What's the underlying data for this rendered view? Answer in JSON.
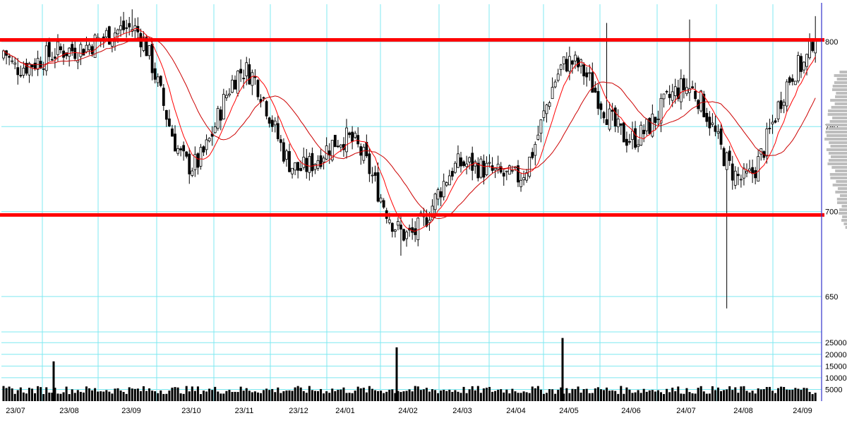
{
  "chart_data": {
    "type": "candlestick",
    "x_tick_labels": [
      "23/07",
      "23/08",
      "23/09",
      "23/10",
      "23/11",
      "23/12",
      "24/01",
      "24/02",
      "24/03",
      "24/04",
      "24/05",
      "24/06",
      "24/07",
      "24/08",
      "24/09"
    ],
    "price_axis": {
      "ticks": [
        650,
        700,
        750,
        800
      ],
      "tick_labels": [
        "650",
        "700",
        "750",
        "800"
      ],
      "range": [
        630,
        822
      ]
    },
    "volume_axis": {
      "ticks": [
        5000,
        10000,
        15000,
        20000,
        25000
      ],
      "tick_labels": [
        "5000",
        "10000",
        "15000",
        "20000",
        "25000"
      ],
      "range": [
        0,
        29000
      ]
    },
    "horizontal_lines": [
      {
        "value": 801,
        "color": "#ff0000"
      },
      {
        "value": 698,
        "color": "#ff0000"
      }
    ],
    "series": [
      {
        "kind": "ohlc",
        "color": "#000000",
        "sampled_closes": [
          {
            "x": "23/07",
            "y": 785
          },
          {
            "x": "23/08",
            "y": 795
          },
          {
            "x": "23/09",
            "y": 808
          },
          {
            "x": "23/10",
            "y": 727
          },
          {
            "x": "23/11",
            "y": 783
          },
          {
            "x": "23/12",
            "y": 725
          },
          {
            "x": "24/01",
            "y": 743
          },
          {
            "x": "24/02",
            "y": 686
          },
          {
            "x": "24/03",
            "y": 728
          },
          {
            "x": "24/04",
            "y": 720
          },
          {
            "x": "24/05",
            "y": 788
          },
          {
            "x": "24/06",
            "y": 743
          },
          {
            "x": "24/07",
            "y": 773
          },
          {
            "x": "24/08",
            "y": 719
          },
          {
            "x": "24/09",
            "y": 786
          }
        ]
      },
      {
        "kind": "moving_average",
        "color": "#ff0000"
      },
      {
        "kind": "moving_average",
        "color": "#cc0000"
      }
    ],
    "volume_peaks": [
      {
        "x": "23/08",
        "value": 17000
      },
      {
        "x": "24/02",
        "value": 23000
      },
      {
        "x": "24/05",
        "value": 27000
      }
    ],
    "grid": true,
    "colors": {
      "grid": "#7fe8f0",
      "candle": "#000000",
      "level_line": "#ff0000",
      "ma_line": "#ff0000",
      "axis": "#3333cc",
      "volume_bar": "#000000"
    }
  }
}
